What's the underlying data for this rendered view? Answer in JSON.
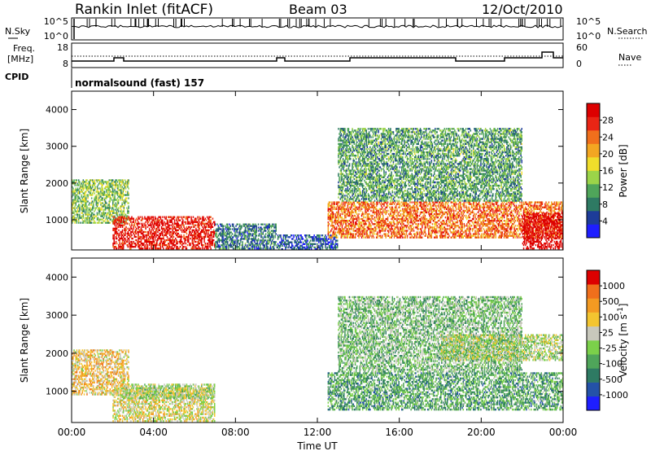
{
  "header": {
    "station": "Rankin Inlet (fitACF)",
    "beam": "Beam 03",
    "date": "12/Oct/2010"
  },
  "strip_panels": {
    "nsky": {
      "left_label": "N.Sky",
      "ticks": [
        "10^5",
        "10^0"
      ],
      "right_ticks": [
        "10^5",
        "10^0"
      ],
      "right_label": "N.Search"
    },
    "freq": {
      "left_label_1": "Freq.",
      "left_label_2": "[MHz]",
      "ticks": [
        "18",
        "8"
      ],
      "right_ticks": [
        "60",
        "0"
      ],
      "right_label": "Nave"
    },
    "cpid": {
      "label": "CPID",
      "value": "normalsound (fast) 157"
    }
  },
  "chart_data": [
    {
      "type": "heatmap",
      "title": "Power",
      "ylabel": "Slant Range [km]",
      "ylim": [
        180,
        4500
      ],
      "yticks": [
        1000,
        2000,
        3000,
        4000
      ],
      "xlim": [
        0,
        24
      ],
      "xticks": [
        "00:00",
        "04:00",
        "08:00",
        "12:00",
        "16:00",
        "20:00",
        "00:00"
      ],
      "colorbar": {
        "label": "Power [dB]",
        "ticks": [
          "28",
          "24",
          "20",
          "16",
          "12",
          "8",
          "4"
        ],
        "colors": [
          "#1e1eff",
          "#1d3c99",
          "#2e7a63",
          "#4fa55a",
          "#9bd449",
          "#f0dd2b",
          "#f3a622",
          "#f06f1c",
          "#ea2515",
          "#dd0000"
        ]
      },
      "echo_regions": [
        {
          "x": [
            0.0,
            2.8
          ],
          "y": [
            900,
            2100
          ],
          "value": 14
        },
        {
          "x": [
            2.0,
            7.0
          ],
          "y": [
            200,
            1100
          ],
          "value": 26
        },
        {
          "x": [
            7.0,
            10.0
          ],
          "y": [
            200,
            900
          ],
          "value": 10
        },
        {
          "x": [
            10.0,
            13.0
          ],
          "y": [
            180,
            600
          ],
          "value": 8
        },
        {
          "x": [
            12.5,
            24.0
          ],
          "y": [
            500,
            1500
          ],
          "value": 22
        },
        {
          "x": [
            13.0,
            22.0
          ],
          "y": [
            1500,
            3500
          ],
          "value": 12
        },
        {
          "x": [
            22.0,
            24.0
          ],
          "y": [
            200,
            1200
          ],
          "value": 28
        }
      ]
    },
    {
      "type": "heatmap",
      "title": "Velocity",
      "ylabel": "Slant Range [km]",
      "xlabel": "Time UT",
      "ylim": [
        180,
        4500
      ],
      "yticks": [
        1000,
        2000,
        3000,
        4000
      ],
      "xlim": [
        0,
        24
      ],
      "xticks": [
        "00:00",
        "04:00",
        "08:00",
        "12:00",
        "16:00",
        "20:00",
        "00:00"
      ],
      "colorbar": {
        "label": "Velocity [m s^-1]",
        "ticks": [
          "1000",
          "500",
          "100",
          "25",
          "-25",
          "-100",
          "-500",
          "-1000"
        ],
        "colors": [
          "#1e1eff",
          "#2452a8",
          "#2e7a63",
          "#4fa55a",
          "#7bd04a",
          "#c8c8bc",
          "#f3c530",
          "#f39a22",
          "#f06f1c",
          "#dd0000"
        ]
      },
      "echo_regions": [
        {
          "x": [
            0.0,
            2.8
          ],
          "y": [
            900,
            2100
          ],
          "value": 300
        },
        {
          "x": [
            2.0,
            7.0
          ],
          "y": [
            200,
            1100
          ],
          "value": 150
        },
        {
          "x": [
            2.5,
            7.0
          ],
          "y": [
            800,
            1200
          ],
          "value": 0
        },
        {
          "x": [
            12.5,
            24.0
          ],
          "y": [
            500,
            1500
          ],
          "value": -300
        },
        {
          "x": [
            13.0,
            22.0
          ],
          "y": [
            1500,
            3500
          ],
          "value": -150
        },
        {
          "x": [
            18.0,
            24.0
          ],
          "y": [
            1800,
            2500
          ],
          "value": 0
        }
      ]
    }
  ]
}
